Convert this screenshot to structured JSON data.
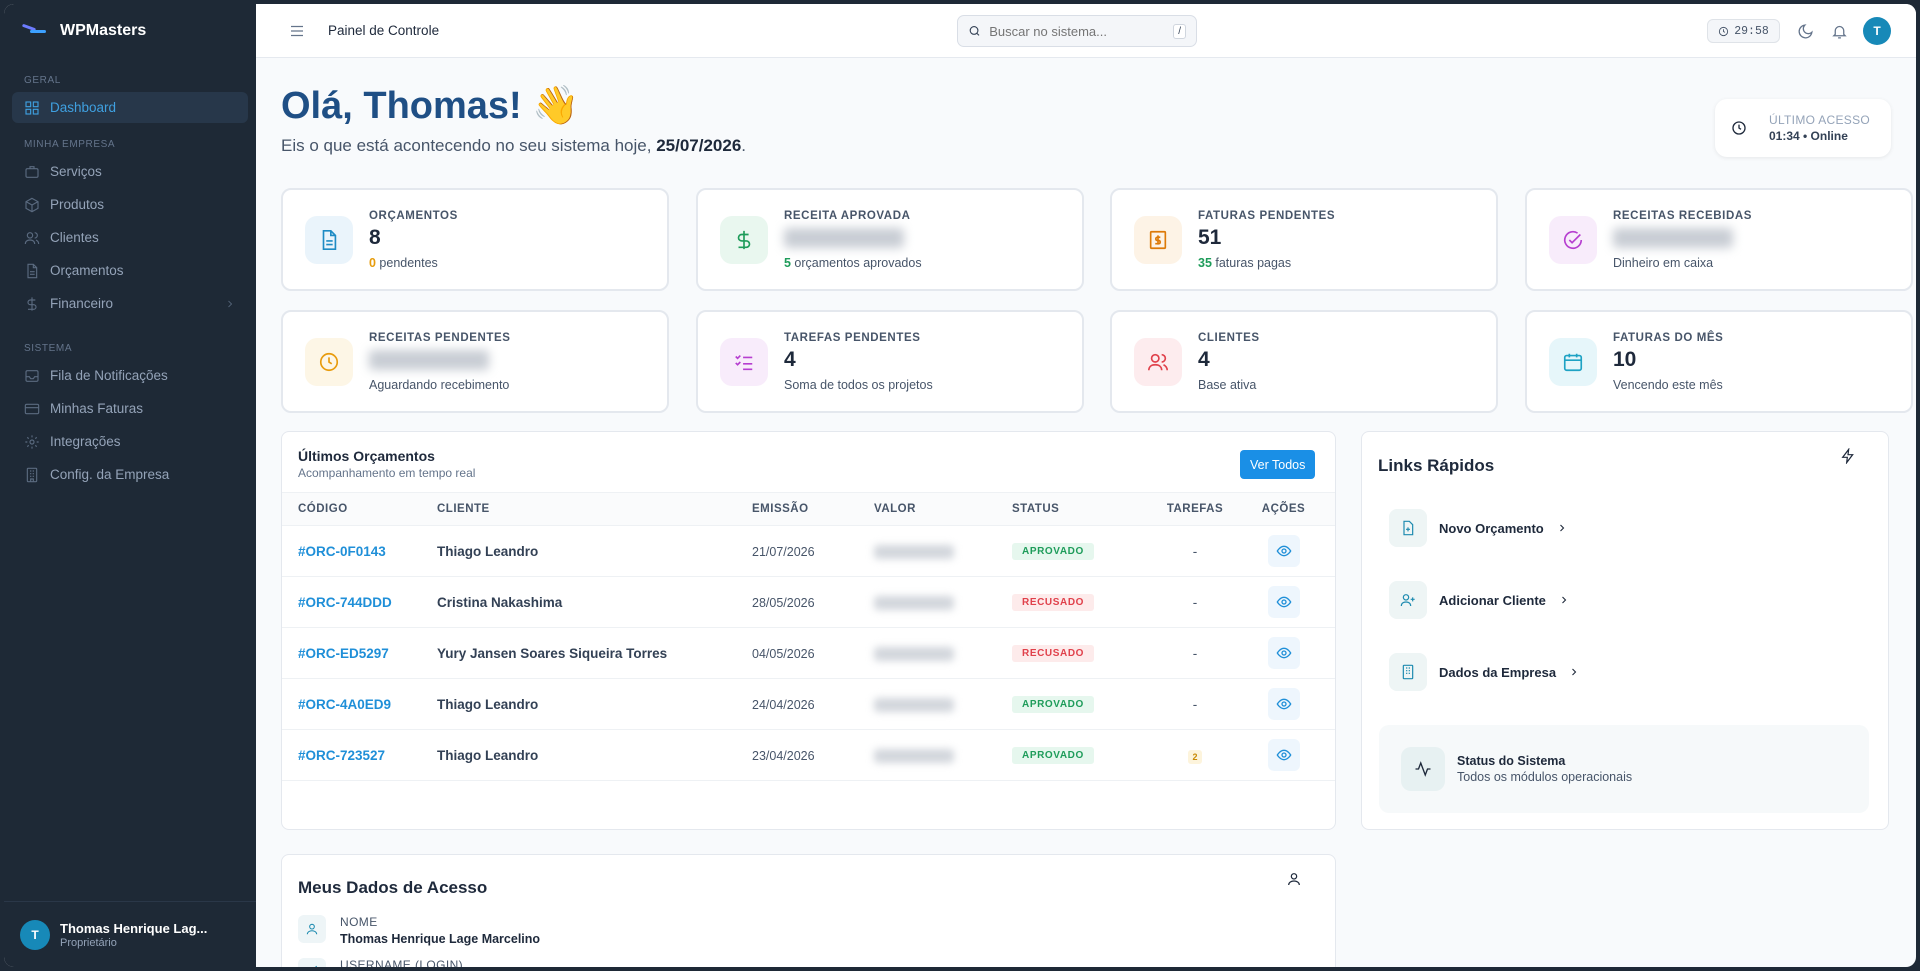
{
  "brand": {
    "name": "WPMasters"
  },
  "sidebar": {
    "sections": [
      {
        "title": "GERAL",
        "items": [
          {
            "label": "Dashboard",
            "icon": "grid-icon"
          }
        ]
      },
      {
        "title": "MINHA EMPRESA",
        "items": [
          {
            "label": "Serviços",
            "icon": "briefcase-icon"
          },
          {
            "label": "Produtos",
            "icon": "box-icon"
          },
          {
            "label": "Clientes",
            "icon": "users-icon"
          },
          {
            "label": "Orçamentos",
            "icon": "document-icon"
          },
          {
            "label": "Financeiro",
            "icon": "dollar-icon"
          }
        ]
      },
      {
        "title": "SISTEMA",
        "items": [
          {
            "label": "Fila de Notificações",
            "icon": "inbox-icon"
          },
          {
            "label": "Minhas Faturas",
            "icon": "credit-card-icon"
          },
          {
            "label": "Integrações",
            "icon": "gear-icon"
          },
          {
            "label": "Config. da Empresa",
            "icon": "building-icon"
          }
        ]
      }
    ],
    "user": {
      "initial": "T",
      "name": "Thomas Henrique Lag...",
      "role": "Proprietário"
    }
  },
  "topbar": {
    "title": "Painel de Controle",
    "search_placeholder": "Buscar no sistema...",
    "search_shortcut": "/",
    "timer": "29:58",
    "avatar": "T"
  },
  "greeting": {
    "title": "Olá, Thomas! 👋",
    "subtitle": "Eis o que está acontecendo no seu sistema hoje, ",
    "date": "25/07/2026",
    "end": "."
  },
  "last_access": {
    "label": "ÚLTIMO ACESSO",
    "value": "01:34 • Online"
  },
  "cards": [
    {
      "label": "Orçamentos",
      "value": "8",
      "sub_num": "0",
      "sub_text": " pendentes",
      "icon": "document-icon",
      "color": "#1e8bc4",
      "bg": "#eaf4fb",
      "num_color": "#e79c0c"
    },
    {
      "label": "Receita Aprovada",
      "value": "",
      "sub_num": "5",
      "sub_text": " orçamentos aprovados",
      "icon": "dollar-icon",
      "color": "#1e9c5a",
      "bg": "#e9f7ef",
      "num_color": "#1e9c5a"
    },
    {
      "label": "Faturas Pendentes",
      "value": "51",
      "sub_num": "35",
      "sub_text": " faturas pagas",
      "icon": "invoice-icon",
      "color": "#dd7a08",
      "bg": "#fdf3e6",
      "num_color": "#1e9c5a"
    },
    {
      "label": "Receitas Recebidas",
      "value": "",
      "sub_num": "",
      "sub_text": "Dinheiro em caixa",
      "icon": "check-circle-icon",
      "color": "#b63fd0",
      "bg": "#f8ecfb",
      "num_color": "#b63fd0"
    },
    {
      "label": "Receitas Pendentes",
      "value": "",
      "sub_num": "",
      "sub_text": "Aguardando recebimento",
      "icon": "clock-icon",
      "color": "#e89b0c",
      "bg": "#fdf6e6",
      "num_color": "#e89b0c"
    },
    {
      "label": "Tarefas Pendentes",
      "value": "4",
      "sub_num": "",
      "sub_text": "Soma de todos os projetos",
      "icon": "checklist-icon",
      "color": "#b63fd0",
      "bg": "#f8ecfb",
      "num_color": "#b63fd0"
    },
    {
      "label": "Clientes",
      "value": "4",
      "sub_num": "",
      "sub_text": "Base ativa",
      "icon": "users-icon",
      "color": "#e0414b",
      "bg": "#fdecee",
      "num_color": "#e0414b"
    },
    {
      "label": "Faturas do Mês",
      "value": "10",
      "sub_num": "",
      "sub_text": "Vencendo este mês",
      "icon": "calendar-icon",
      "color": "#1ea2c4",
      "bg": "#e6f6fa",
      "num_color": "#1ea2c4"
    }
  ],
  "quotes": {
    "title": "Últimos Orçamentos",
    "subtitle": "Acompanhamento em tempo real",
    "button": "Ver Todos",
    "headers": [
      "CÓDIGO",
      "CLIENTE",
      "EMISSÃO",
      "VALOR",
      "STATUS",
      "TAREFAS",
      "AÇÕES"
    ],
    "rows": [
      {
        "code": "#ORC-0F0143",
        "client": "Thiago Leandro",
        "date": "21/07/2026",
        "status": "APROVADO",
        "tasks": "-"
      },
      {
        "code": "#ORC-744DDD",
        "client": "Cristina Nakashima",
        "date": "28/05/2026",
        "status": "RECUSADO",
        "tasks": "-"
      },
      {
        "code": "#ORC-ED5297",
        "client": "Yury Jansen Soares Siqueira Torres",
        "date": "04/05/2026",
        "status": "RECUSADO",
        "tasks": "-"
      },
      {
        "code": "#ORC-4A0ED9",
        "client": "Thiago Leandro",
        "date": "24/04/2026",
        "status": "APROVADO",
        "tasks": "-"
      },
      {
        "code": "#ORC-723527",
        "client": "Thiago Leandro",
        "date": "23/04/2026",
        "status": "APROVADO",
        "tasks": "2"
      }
    ]
  },
  "quick_links": {
    "title": "Links Rápidos",
    "items": [
      {
        "label": "Novo Orçamento",
        "icon": "file-plus-icon"
      },
      {
        "label": "Adicionar Cliente",
        "icon": "user-plus-icon"
      },
      {
        "label": "Dados da Empresa",
        "icon": "building-icon"
      }
    ],
    "status_title": "Status do Sistema",
    "status_text": "Todos os módulos operacionais"
  },
  "access": {
    "title": "Meus Dados de Acesso",
    "fields": [
      {
        "label": "NOME",
        "value": "Thomas Henrique Lage Marcelino"
      },
      {
        "label": "USERNAME (LOGIN)",
        "value": ""
      }
    ]
  }
}
